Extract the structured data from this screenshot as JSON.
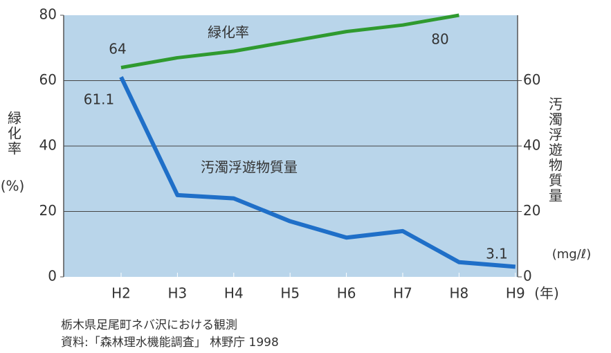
{
  "chart_data": {
    "type": "line",
    "categories": [
      "H2",
      "H3",
      "H4",
      "H5",
      "H6",
      "H7",
      "H8",
      "H9"
    ],
    "x_unit": "(年)",
    "ylabel": "緑化率",
    "yunit": "(%)",
    "y2label": "汚濁浮遊物質量",
    "y2unit": "(mg/ℓ)",
    "ylim": [
      0,
      80
    ],
    "yticks": [
      0,
      20,
      40,
      60,
      80
    ],
    "y2lim": [
      0,
      80
    ],
    "y2ticks": [
      0,
      20,
      40,
      60
    ],
    "grid": true,
    "series": [
      {
        "name": "緑化率",
        "color": "#2f9a2f",
        "values": [
          64,
          67,
          69,
          72,
          75,
          77,
          80,
          null
        ]
      },
      {
        "name": "汚濁浮遊物質量",
        "color": "#1f6fc8",
        "axis": "y2",
        "values": [
          61.1,
          25,
          24,
          17,
          12,
          14,
          4.5,
          3.1
        ]
      }
    ],
    "notes": [
      "栃木県足尾町ネバ沢における観測",
      "資料:「森林理水機能調査」 林野庁 1998"
    ]
  }
}
